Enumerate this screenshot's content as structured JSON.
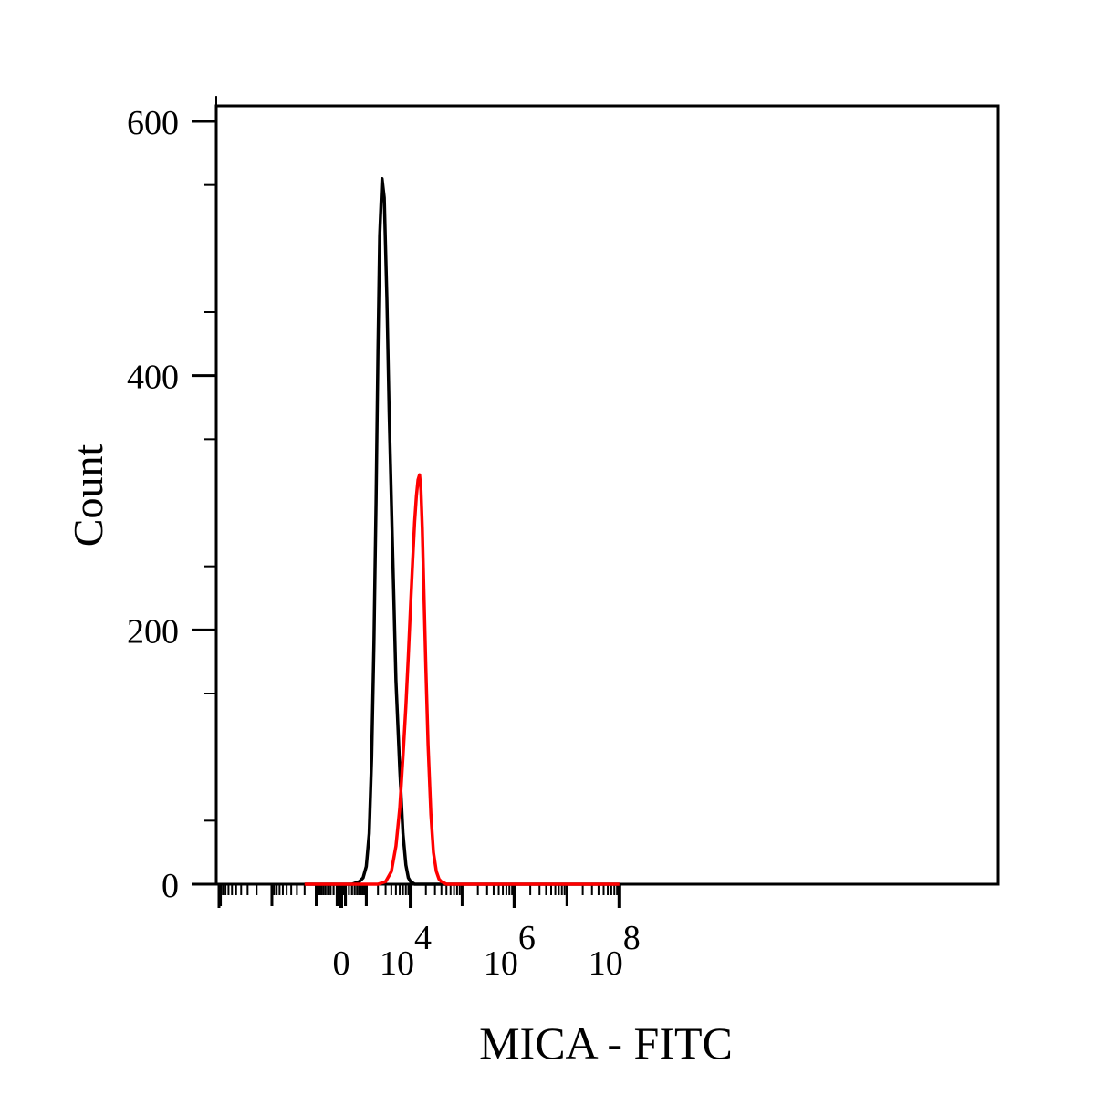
{
  "chart_data": {
    "type": "line",
    "title": "",
    "xlabel": "MICA - FITC",
    "ylabel": "Count",
    "x_scale": "biexponential",
    "xlim": [
      -2000,
      100000000
    ],
    "ylim": [
      0,
      620
    ],
    "grid": false,
    "legend": "none",
    "y_ticks": [
      {
        "value": 0,
        "label": "0"
      },
      {
        "value": 200,
        "label": "200"
      },
      {
        "value": 400,
        "label": "400"
      },
      {
        "value": 600,
        "label": "600"
      }
    ],
    "x_ticks": [
      {
        "value": 0,
        "label": "0"
      },
      {
        "value": 10000,
        "base": "10",
        "exp": "4"
      },
      {
        "value": 1000000,
        "base": "10",
        "exp": "6"
      },
      {
        "value": 100000000,
        "base": "10",
        "exp": "8"
      }
    ],
    "series": [
      {
        "color": "#000000",
        "x": [
          -2000,
          300,
          600,
          800,
          1000,
          1200,
          1400,
          1600,
          1800,
          2000,
          2200,
          2500,
          2800,
          3200,
          3600,
          4200,
          5000,
          6000,
          7000,
          8000,
          9000,
          10000,
          11000,
          12000,
          100000000
        ],
        "y": [
          0,
          0,
          2,
          5,
          14,
          40,
          100,
          190,
          300,
          420,
          510,
          555,
          540,
          460,
          370,
          270,
          160,
          90,
          40,
          15,
          5,
          2,
          1,
          0,
          0
        ]
      },
      {
        "color": "#ff0000",
        "x": [
          -2000,
          2000,
          3000,
          4000,
          5000,
          6000,
          7000,
          8000,
          9000,
          10000,
          11000,
          12000,
          13000,
          14000,
          15000,
          16000,
          17000,
          18000,
          20000,
          22000,
          25000,
          28000,
          32000,
          36000,
          40000,
          45000,
          50000,
          60000,
          100000000
        ],
        "y": [
          0,
          0,
          2,
          10,
          30,
          60,
          100,
          140,
          180,
          220,
          255,
          285,
          305,
          318,
          322,
          310,
          280,
          240,
          170,
          110,
          55,
          25,
          10,
          4,
          2,
          1,
          0,
          0,
          0
        ]
      }
    ]
  }
}
